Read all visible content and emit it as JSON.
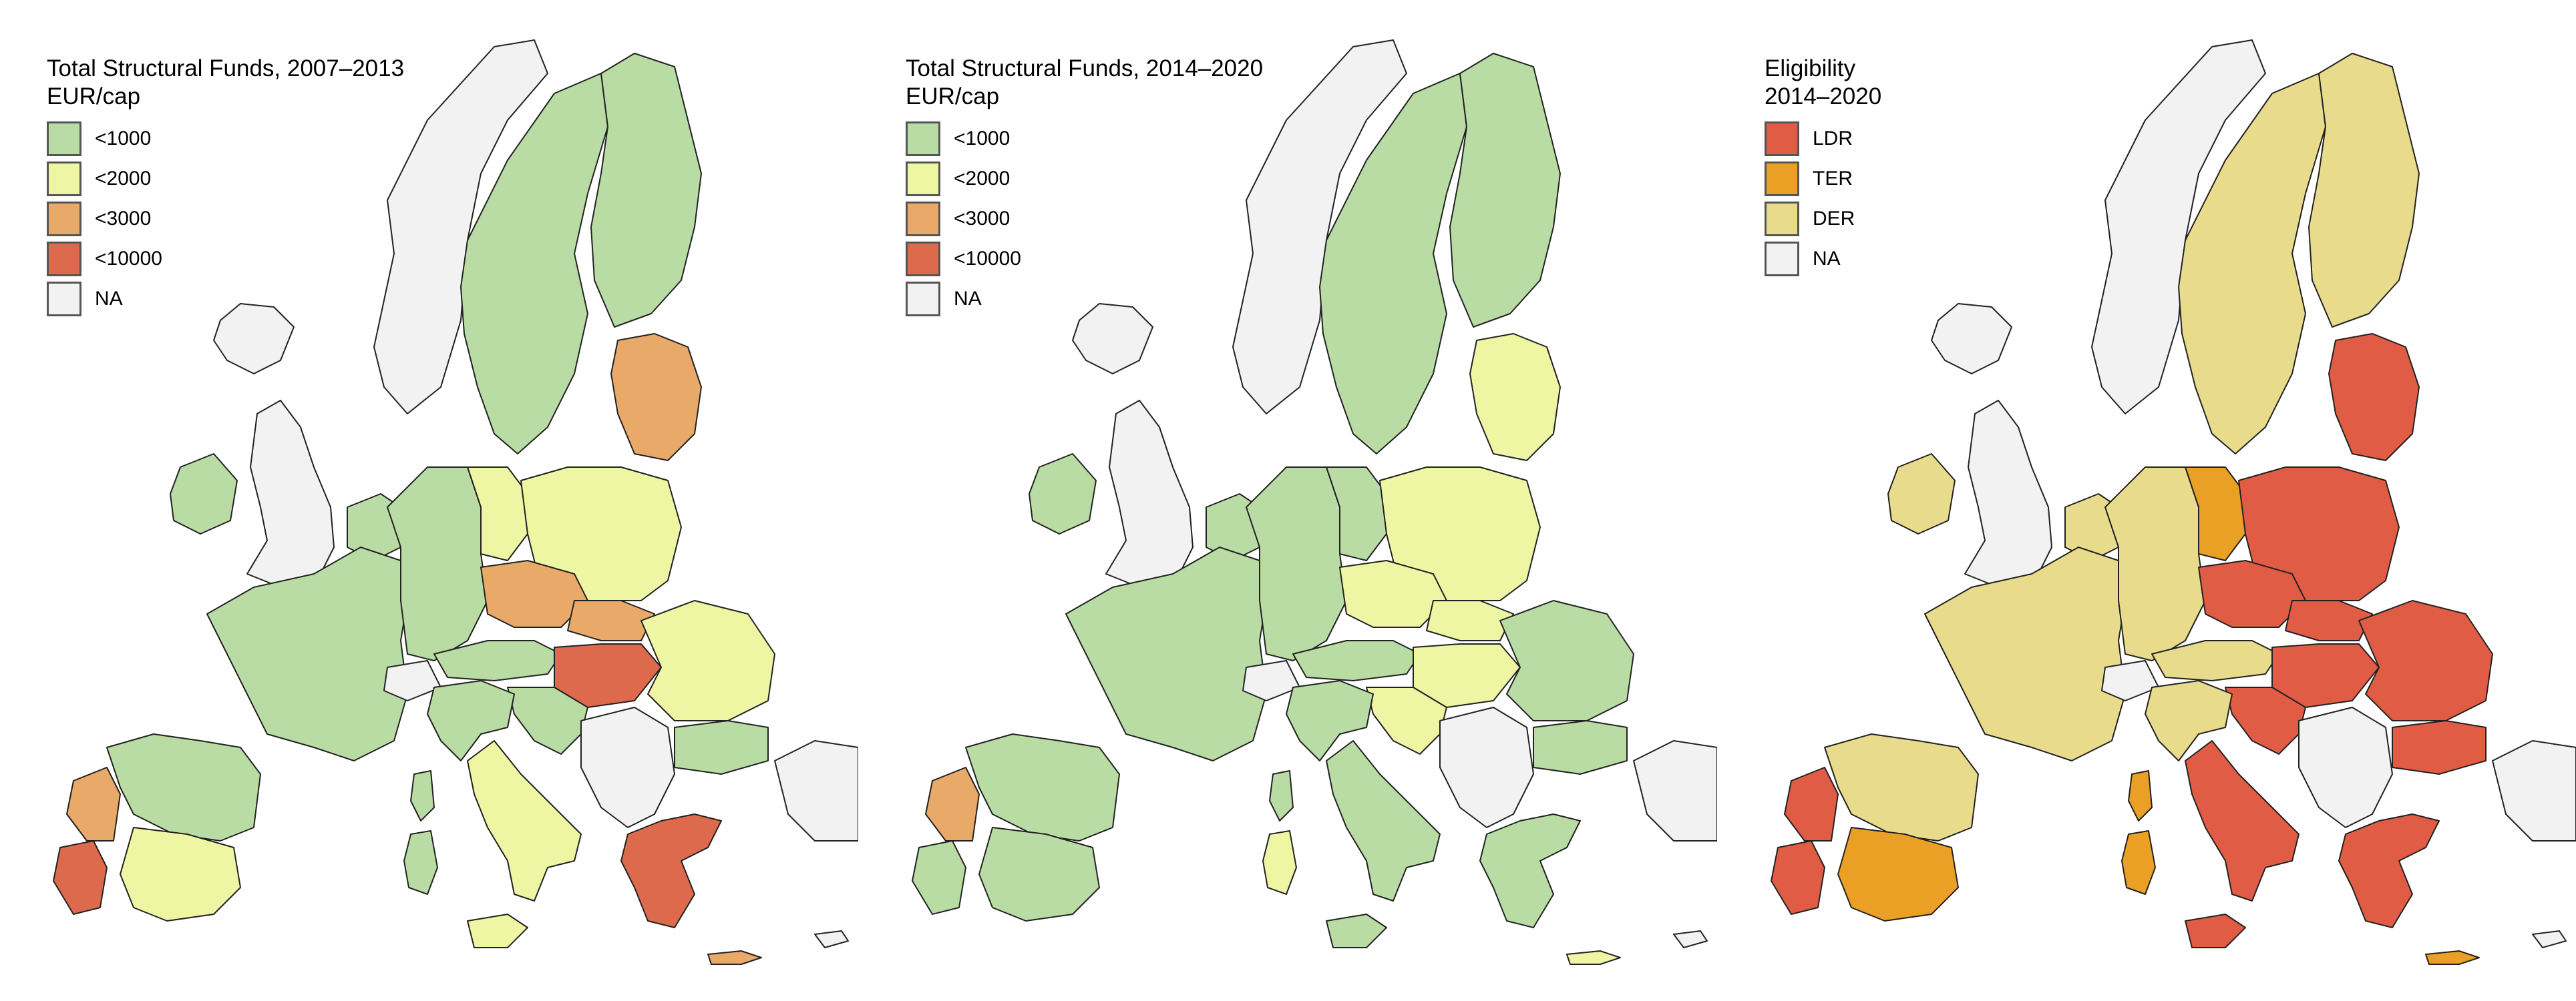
{
  "panels": [
    {
      "id": "funds-2007-2013",
      "title": "Total Structural Funds, 2007–2013",
      "subtitle": "EUR/cap",
      "legend": [
        {
          "label": "<1000",
          "color": "#b9dca5"
        },
        {
          "label": "<2000",
          "color": "#eef5a3"
        },
        {
          "label": "<3000",
          "color": "#e9a968"
        },
        {
          "label": "<10000",
          "color": "#dd6a4c"
        },
        {
          "label": "NA",
          "color": "#f2f2f2"
        }
      ],
      "regions": {
        "scandinavia": "#b9dca5",
        "finland": "#b9dca5",
        "norway": "#f2f2f2",
        "iceland": "#f2f2f2",
        "uk": "#f2f2f2",
        "ireland": "#b9dca5",
        "france": "#b9dca5",
        "benelux": "#b9dca5",
        "germany": "#b9dca5",
        "east_germany": "#eef5a3",
        "switzerland": "#f2f2f2",
        "austria": "#b9dca5",
        "italy_north": "#b9dca5",
        "italy_south": "#eef5a3",
        "spain": "#b9dca5",
        "spain_south": "#eef5a3",
        "portugal": "#e9a968",
        "portugal_south": "#dd6a4c",
        "poland": "#eef5a3",
        "czechia": "#e9a968",
        "slovakia": "#e9a968",
        "hungary": "#dd6a4c",
        "baltics": "#e9a968",
        "romania": "#eef5a3",
        "bulgaria": "#b9dca5",
        "balkans": "#f2f2f2",
        "greece": "#dd6a4c",
        "slovenia_croatia": "#b9dca5",
        "turkey": "#f2f2f2",
        "sardinia": "#b9dca5",
        "sicily": "#eef5a3",
        "corsica": "#b9dca5",
        "crete": "#e9a968",
        "cyprus": "#f2f2f2"
      }
    },
    {
      "id": "funds-2014-2020",
      "title": "Total Structural Funds, 2014–2020",
      "subtitle": "EUR/cap",
      "legend": [
        {
          "label": "<1000",
          "color": "#b9dca5"
        },
        {
          "label": "<2000",
          "color": "#eef5a3"
        },
        {
          "label": "<3000",
          "color": "#e9a968"
        },
        {
          "label": "<10000",
          "color": "#dd6a4c"
        },
        {
          "label": "NA",
          "color": "#f2f2f2"
        }
      ],
      "regions": {
        "scandinavia": "#b9dca5",
        "finland": "#b9dca5",
        "norway": "#f2f2f2",
        "iceland": "#f2f2f2",
        "uk": "#f2f2f2",
        "ireland": "#b9dca5",
        "france": "#b9dca5",
        "benelux": "#b9dca5",
        "germany": "#b9dca5",
        "east_germany": "#b9dca5",
        "switzerland": "#f2f2f2",
        "austria": "#b9dca5",
        "italy_north": "#b9dca5",
        "italy_south": "#b9dca5",
        "spain": "#b9dca5",
        "spain_south": "#b9dca5",
        "portugal": "#e9a968",
        "portugal_south": "#b9dca5",
        "poland": "#eef5a3",
        "czechia": "#eef5a3",
        "slovakia": "#eef5a3",
        "hungary": "#eef5a3",
        "baltics": "#eef5a3",
        "romania": "#b9dca5",
        "bulgaria": "#b9dca5",
        "balkans": "#f2f2f2",
        "greece": "#b9dca5",
        "slovenia_croatia": "#eef5a3",
        "turkey": "#f2f2f2",
        "sardinia": "#eef5a3",
        "sicily": "#b9dca5",
        "corsica": "#b9dca5",
        "crete": "#eef5a3",
        "cyprus": "#f2f2f2"
      }
    },
    {
      "id": "eligibility-2014-2020",
      "title": "Eligibility",
      "subtitle": "2014–2020",
      "legend": [
        {
          "label": "LDR",
          "color": "#e05c44"
        },
        {
          "label": "TER",
          "color": "#eaa025"
        },
        {
          "label": "DER",
          "color": "#e8dc8c"
        },
        {
          "label": "NA",
          "color": "#f2f2f2"
        }
      ],
      "regions": {
        "scandinavia": "#e8dc8c",
        "finland": "#e8dc8c",
        "norway": "#f2f2f2",
        "iceland": "#f2f2f2",
        "uk": "#f2f2f2",
        "ireland": "#e8dc8c",
        "france": "#e8dc8c",
        "benelux": "#e8dc8c",
        "germany": "#e8dc8c",
        "east_germany": "#eaa025",
        "switzerland": "#f2f2f2",
        "austria": "#e8dc8c",
        "italy_north": "#e8dc8c",
        "italy_south": "#e05c44",
        "spain": "#e8dc8c",
        "spain_south": "#eaa025",
        "portugal": "#e05c44",
        "portugal_south": "#e05c44",
        "poland": "#e05c44",
        "czechia": "#e05c44",
        "slovakia": "#e05c44",
        "hungary": "#e05c44",
        "baltics": "#e05c44",
        "romania": "#e05c44",
        "bulgaria": "#e05c44",
        "balkans": "#f2f2f2",
        "greece": "#e05c44",
        "slovenia_croatia": "#e05c44",
        "turkey": "#f2f2f2",
        "sardinia": "#eaa025",
        "sicily": "#e05c44",
        "corsica": "#eaa025",
        "crete": "#eaa025",
        "cyprus": "#f2f2f2"
      }
    }
  ]
}
